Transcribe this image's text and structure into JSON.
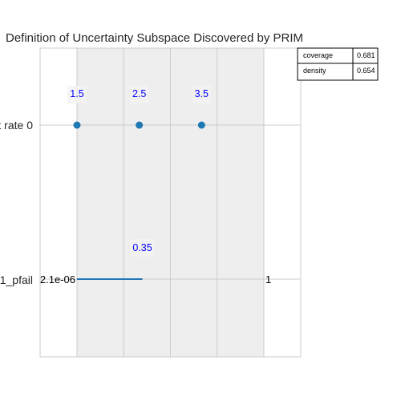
{
  "chart_data": {
    "type": "scatter",
    "title": "Definition of Uncertainty Subspace Discovered by PRIM",
    "rows": [
      {
        "label": "t rate 0",
        "kind": "categorical",
        "points": [
          1.5,
          2.5,
          3.5
        ],
        "point_labels": [
          "1.5",
          "2.5",
          "3.5"
        ]
      },
      {
        "label": "1_pfail",
        "kind": "continuous",
        "range_min": "2.1e-06",
        "range_max": "1",
        "box_max": 0.35,
        "box_max_label": "0.35"
      }
    ],
    "stats": [
      {
        "name": "coverage",
        "value": "0.681"
      },
      {
        "name": "density",
        "value": "0.654"
      }
    ],
    "grid": true,
    "colors": {
      "marker": "#1f77b4",
      "value_label": "#0000ff",
      "shade": "#eeeeee",
      "grid": "#cccccc"
    }
  }
}
